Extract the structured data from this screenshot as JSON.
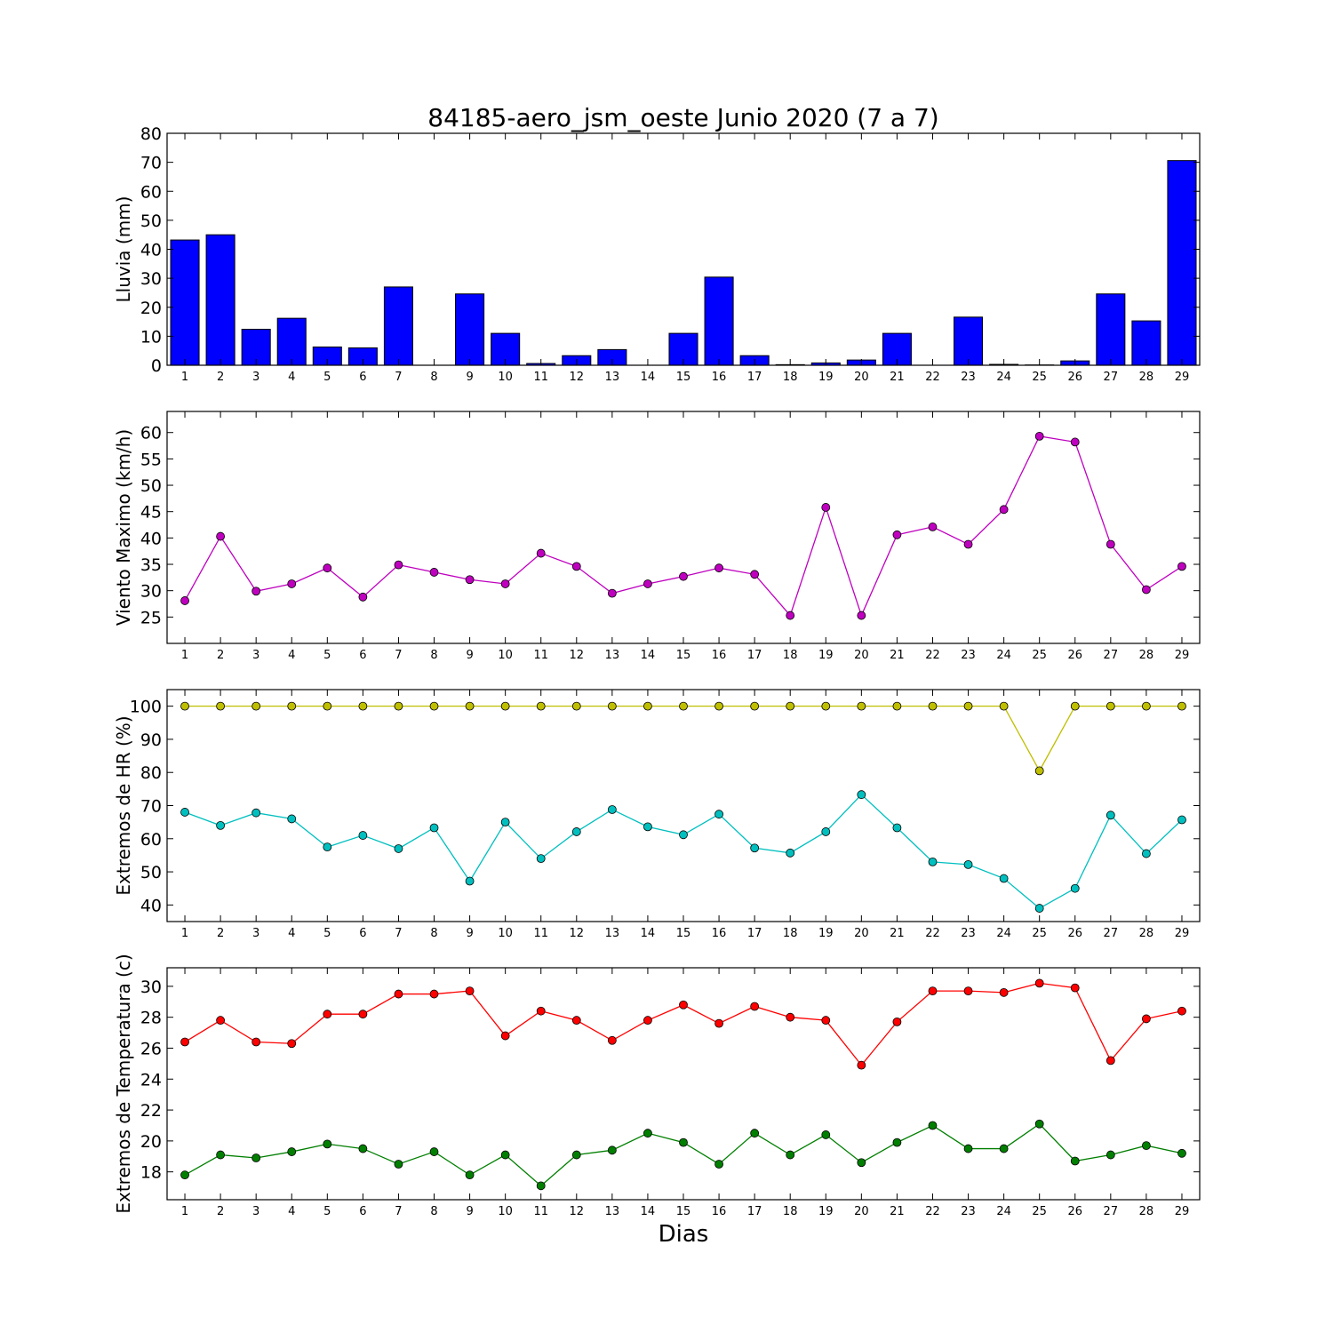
{
  "title": "84185-aero_jsm_oeste Junio 2020  (7 a 7)",
  "xlabel": "Dias",
  "chart_data": [
    {
      "type": "bar",
      "ylabel": "Lluvia (mm)",
      "ylim": [
        0,
        80
      ],
      "yticks": [
        0,
        10,
        20,
        30,
        40,
        50,
        60,
        70,
        80
      ],
      "categories": [
        1,
        2,
        3,
        4,
        5,
        6,
        7,
        8,
        9,
        10,
        11,
        12,
        13,
        14,
        15,
        16,
        17,
        18,
        19,
        20,
        21,
        22,
        23,
        24,
        25,
        26,
        27,
        28,
        29
      ],
      "series": [
        {
          "color": "#0000ff",
          "values": [
            43.2,
            45.0,
            12.4,
            16.2,
            6.3,
            6.0,
            27.0,
            0.0,
            24.6,
            11.0,
            0.6,
            3.3,
            5.4,
            0.0,
            11.0,
            30.4,
            3.3,
            0.2,
            0.8,
            1.8,
            11.0,
            0.0,
            16.6,
            0.3,
            0.1,
            1.5,
            24.6,
            15.3,
            70.6
          ]
        }
      ]
    },
    {
      "type": "line",
      "ylabel": "Viento Maximo (km/h)",
      "ylim": [
        20,
        64
      ],
      "yticks": [
        25,
        30,
        35,
        40,
        45,
        50,
        55,
        60
      ],
      "categories": [
        1,
        2,
        3,
        4,
        5,
        6,
        7,
        8,
        9,
        10,
        11,
        12,
        13,
        14,
        15,
        16,
        17,
        18,
        19,
        20,
        21,
        22,
        23,
        24,
        25,
        26,
        27,
        28,
        29
      ],
      "series": [
        {
          "color": "#bf00bf",
          "values": [
            28.1,
            40.3,
            29.9,
            31.3,
            34.3,
            28.8,
            34.9,
            33.5,
            32.1,
            31.3,
            37.1,
            34.6,
            29.5,
            31.3,
            32.7,
            34.3,
            33.1,
            25.3,
            45.8,
            25.3,
            40.6,
            42.1,
            38.8,
            45.4,
            59.3,
            58.2,
            38.8,
            30.2,
            34.6
          ]
        }
      ]
    },
    {
      "type": "line",
      "ylabel": "Extremos de HR (%)",
      "ylim": [
        35,
        105
      ],
      "yticks": [
        40,
        50,
        60,
        70,
        80,
        90,
        100
      ],
      "categories": [
        1,
        2,
        3,
        4,
        5,
        6,
        7,
        8,
        9,
        10,
        11,
        12,
        13,
        14,
        15,
        16,
        17,
        18,
        19,
        20,
        21,
        22,
        23,
        24,
        25,
        26,
        27,
        28,
        29
      ],
      "series": [
        {
          "color": "#bfbf00",
          "values": [
            100,
            100,
            100,
            100,
            100,
            100,
            100,
            100,
            100,
            100,
            100,
            100,
            100,
            100,
            100,
            100,
            100,
            100,
            100,
            100,
            100,
            100,
            100,
            100,
            80.5,
            100,
            100,
            100,
            100
          ]
        },
        {
          "color": "#00bfbf",
          "values": [
            68.0,
            64.0,
            67.8,
            66.0,
            57.5,
            61.0,
            57.0,
            63.3,
            47.2,
            65.0,
            54.0,
            62.1,
            68.8,
            63.6,
            61.2,
            67.4,
            57.2,
            55.7,
            62.1,
            73.3,
            63.3,
            53.0,
            52.2,
            48.0,
            39.0,
            45.0,
            67.1,
            55.5,
            65.7
          ]
        }
      ]
    },
    {
      "type": "line",
      "ylabel": "Extremos de Temperatura (c)",
      "ylim": [
        16.2,
        31.2
      ],
      "yticks": [
        18,
        20,
        22,
        24,
        26,
        28,
        30
      ],
      "categories": [
        1,
        2,
        3,
        4,
        5,
        6,
        7,
        8,
        9,
        10,
        11,
        12,
        13,
        14,
        15,
        16,
        17,
        18,
        19,
        20,
        21,
        22,
        23,
        24,
        25,
        26,
        27,
        28,
        29
      ],
      "series": [
        {
          "color": "#ff0000",
          "values": [
            26.4,
            27.8,
            26.4,
            26.3,
            28.2,
            28.2,
            29.5,
            29.5,
            29.7,
            26.8,
            28.4,
            27.8,
            26.5,
            27.8,
            28.8,
            27.6,
            28.7,
            28.0,
            27.8,
            24.9,
            27.7,
            29.7,
            29.7,
            29.6,
            30.2,
            29.9,
            25.2,
            27.9,
            28.4
          ]
        },
        {
          "color": "#007f00",
          "values": [
            17.8,
            19.1,
            18.9,
            19.3,
            19.8,
            19.5,
            18.5,
            19.3,
            17.8,
            19.1,
            17.1,
            19.1,
            19.4,
            20.5,
            19.9,
            18.5,
            20.5,
            19.1,
            20.4,
            18.6,
            19.9,
            21.0,
            19.5,
            19.5,
            21.1,
            18.7,
            19.1,
            19.7,
            19.2
          ]
        }
      ]
    }
  ]
}
